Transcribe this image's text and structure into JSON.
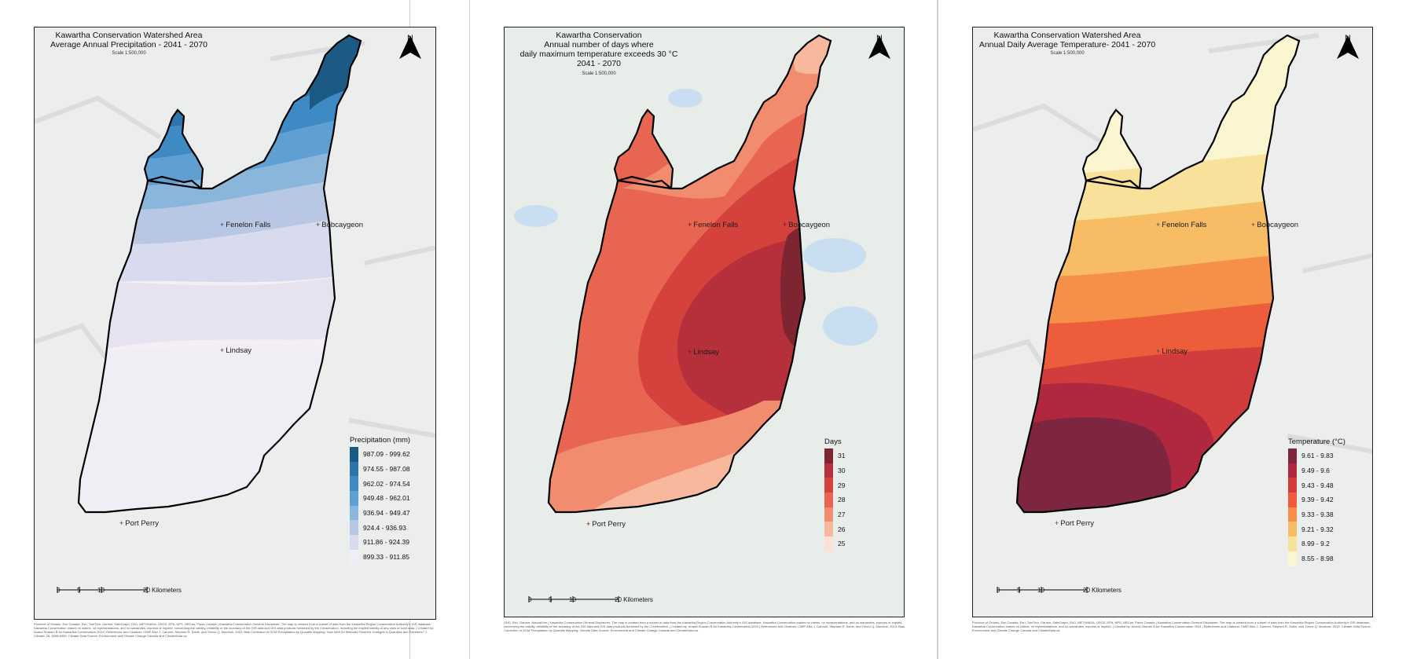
{
  "maps": [
    {
      "title_lines": [
        "Kawartha Conservation Watershed Area",
        "Average Annual Precipitation - 2041 - 2070"
      ],
      "scale_text": "Scale 1:500,000",
      "north_label": "N",
      "places": [
        "Fenelon Falls",
        "Bobcaygeon",
        "Lindsay",
        "Port Perry"
      ],
      "legend_title": "Precipitation (mm)",
      "legend": [
        {
          "label": "987.09 - 999.62",
          "color": "#1c5a86"
        },
        {
          "label": "974.55 - 987.08",
          "color": "#2c74a9"
        },
        {
          "label": "962.02 - 974.54",
          "color": "#3e8ac4"
        },
        {
          "label": "949.48 - 962.01",
          "color": "#5f9fd1"
        },
        {
          "label": "936.94 - 949.47",
          "color": "#8ab6dc"
        },
        {
          "label": "924.4 - 936.93",
          "color": "#b8c7e4"
        },
        {
          "label": "911.86 - 924.39",
          "color": "#d8dbee"
        },
        {
          "label": "899.33 - 911.85",
          "color": "#f1edf4"
        }
      ],
      "scalebar_ticks": [
        "0",
        "5",
        "10",
        "20 Kilometers"
      ],
      "credits": "Province of Ontario, Esri Canada, Esri, TomTom, Garmin, SafeGraph, FAO, METI/NASA, USGS, EPA, NPS, NRCan, Parks Canada | Kawartha Conservation General Disclaimer: The map is created from a subset of data from the Kawartha Region Conservation Authority's GIS database. Kawartha Conservation makes no claims, no representations, and no warranties, express or implied, concerning the validity, reliability or the accuracy of the GIS data and GIS data products furnished by the Conservation, including the implied validity of any uses of such data. | Created by: Anand Sharam B for Kawartha Conservation 2024 | References and Citations: CMIP Alex J. Cannon, Stephen R. Sobie, and Trevor Q. Murdock, 2015: Bias Correction of GCM Precipitation by Quantile Mapping: How Well Do Methods Preserve Changes in Quantiles and Extremes? J. Climate, 28, 6938-6959. Climate Data Source: Environment and Climate Change Canada and ClimateData.ca."
    },
    {
      "title_lines": [
        "Kawartha Conservation",
        "Annual number of days where",
        "daily maximum temperature exceeds 30 °C",
        "2041 - 2070"
      ],
      "scale_text": "Scale 1:500,000",
      "north_label": "N",
      "places": [
        "Fenelon Falls",
        "Bobcaygeon",
        "Lindsay",
        "Port Perry"
      ],
      "legend_title": "Days",
      "legend": [
        {
          "label": "31",
          "color": "#7f2532"
        },
        {
          "label": "30",
          "color": "#b5303a"
        },
        {
          "label": "29",
          "color": "#d5423d"
        },
        {
          "label": "28",
          "color": "#e76551"
        },
        {
          "label": "27",
          "color": "#f28c6f"
        },
        {
          "label": "26",
          "color": "#f7b89e"
        },
        {
          "label": "25",
          "color": "#fbe0d4"
        }
      ],
      "scalebar_ticks": [
        "0",
        "5",
        "10",
        "20 Kilometers"
      ],
      "credits": "OHS, Esri, Garmin, NaturalVue | Kawartha Conservation General Disclaimer: The map is created from a subset of data from the Kawartha Region Conservation Authority's GIS database. Kawartha Conservation makes no claims, no representations, and no warranties, express or implied, concerning the validity, reliability or the accuracy of the GIS data and GIS data products furnished by the Conservation. | Created by: Anand Sharam B for Kawartha Conservation 2024 | References and Citations: CMIP Alex J. Cannon, Stephen R. Sobie, and Trevor Q. Murdock, 2015: Bias Correction of GCM Precipitation by Quantile Mapping. Climate Data Source: Environment and Climate Change Canada and ClimateData.ca."
    },
    {
      "title_lines": [
        "Kawartha Conservation Watershed Area",
        "Annual Daily Average Temperature- 2041 - 2070"
      ],
      "scale_text": "Scale 1:500,000",
      "north_label": "N",
      "places": [
        "Fenelon Falls",
        "Bobcaygeon",
        "Lindsay",
        "Port Perry"
      ],
      "legend_title": "Temperature (°C)",
      "legend": [
        {
          "label": "9.61 - 9.83",
          "color": "#7e2540"
        },
        {
          "label": "9.49 - 9.6",
          "color": "#b0283f"
        },
        {
          "label": "9.43 - 9.48",
          "color": "#d33c3d"
        },
        {
          "label": "9.39 - 9.42",
          "color": "#ee5d3b"
        },
        {
          "label": "9.33 - 9.38",
          "color": "#f68f47"
        },
        {
          "label": "9.21 - 9.32",
          "color": "#f8bc64"
        },
        {
          "label": "8.99 - 9.2",
          "color": "#f8e19a"
        },
        {
          "label": "8.55 - 8.98",
          "color": "#fbf6cf"
        }
      ],
      "scalebar_ticks": [
        "0",
        "5",
        "10",
        "20 Kilometers"
      ],
      "credits": "Province of Ontario, Esri Canada, Esri, TomTom, Garmin, SafeGraph, FAO, METI/NASA, USGS, EPA, NPS, NRCan, Parks Canada | Kawartha Conservation General Disclaimer: The map is created from a subset of data from the Kawartha Region Conservation Authority's GIS database. Kawartha Conservation makes no claims, no representations, and no warranties, express or implied. | Created by: Anand Sharam B for Kawartha Conservation 2024 | References and Citations: CMIP Alex J. Cannon, Stephen R. Sobie, and Trevor Q. Murdock, 2015. Climate Data Source: Environment and Climate Change Canada and ClimateData.ca."
    }
  ]
}
